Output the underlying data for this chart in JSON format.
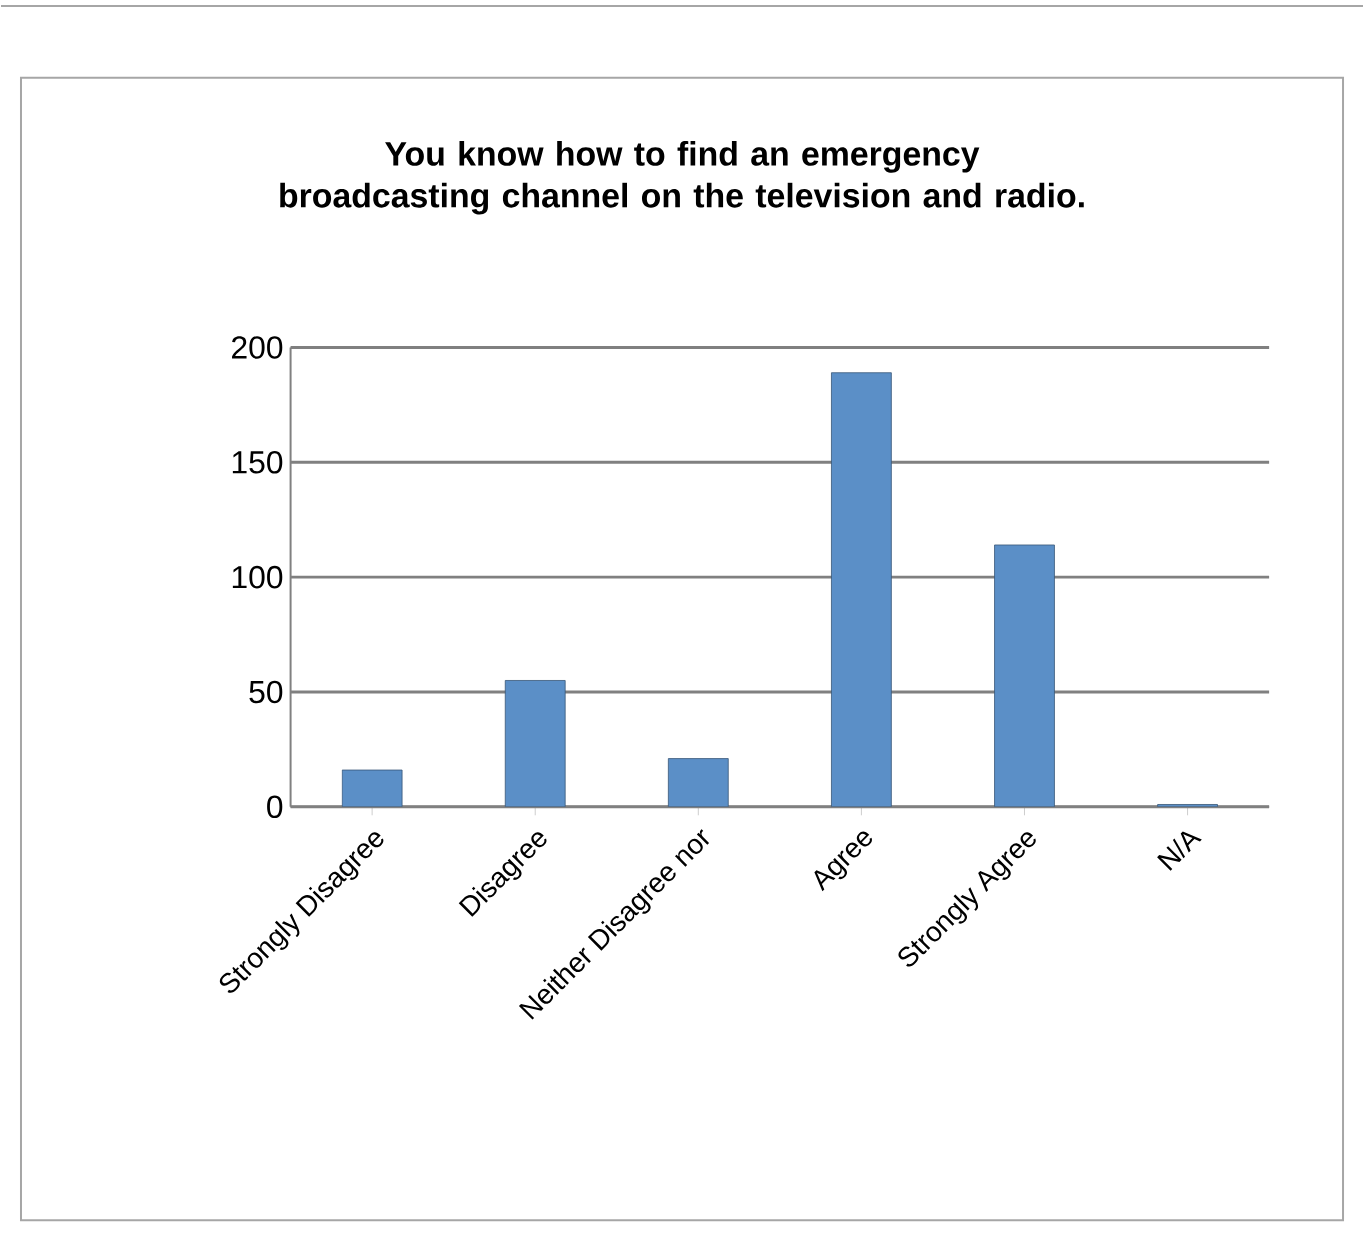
{
  "chart_data": {
    "type": "bar",
    "title": "You know how to find an emergency broadcasting channel on the television and radio.",
    "categories": [
      "Strongly Disagree",
      "Disagree",
      "Neither Disagree nor",
      "Agree",
      "Strongly Agree",
      "N/A"
    ],
    "values": [
      16,
      55,
      21,
      189,
      114,
      1
    ],
    "color": "#5b8fc7",
    "ylim": [
      0,
      200
    ],
    "yticks": [
      0,
      50,
      100,
      150,
      200
    ],
    "grid": "y"
  }
}
